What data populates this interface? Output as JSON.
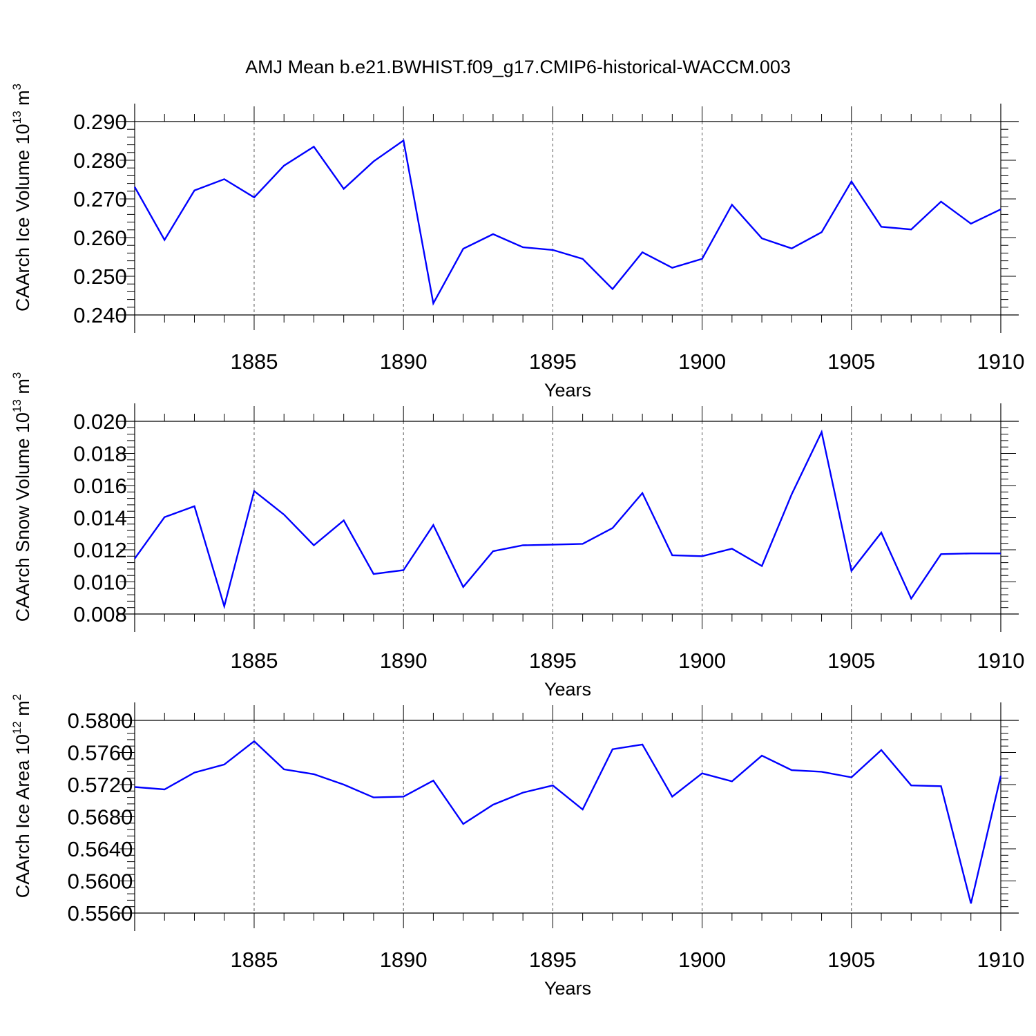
{
  "figure_title": "AMJ Mean b.e21.BWHIST.f09_g17.CMIP6-historical-WACCM.003",
  "colors": {
    "series": "#0000ff",
    "axes": "#000000",
    "grid": "#555555"
  },
  "chart_data": [
    {
      "type": "line",
      "ylabel": {
        "text": "CAArch Ice Volume 10",
        "sup1": "13",
        "mid": " m",
        "sup2": "3"
      },
      "xlabel": "Years",
      "xlim": [
        1881,
        1910
      ],
      "ylim": [
        0.24,
        0.29
      ],
      "xticks": [
        1885,
        1890,
        1895,
        1900,
        1905,
        1910
      ],
      "yticks": [
        "0.240",
        "0.250",
        "0.260",
        "0.270",
        "0.280",
        "0.290"
      ],
      "ytick_values": [
        0.24,
        0.25,
        0.26,
        0.27,
        0.28,
        0.29
      ],
      "grid": "x-major dashed",
      "x": [
        1881,
        1882,
        1883,
        1884,
        1885,
        1886,
        1887,
        1888,
        1889,
        1890,
        1891,
        1892,
        1893,
        1894,
        1895,
        1896,
        1897,
        1898,
        1899,
        1900,
        1901,
        1902,
        1903,
        1904,
        1905,
        1906,
        1907,
        1908,
        1909,
        1910
      ],
      "values": [
        0.2731,
        0.2594,
        0.2722,
        0.2751,
        0.2704,
        0.2786,
        0.2835,
        0.2726,
        0.2797,
        0.2851,
        0.243,
        0.2571,
        0.2609,
        0.2575,
        0.2568,
        0.2545,
        0.2467,
        0.2562,
        0.2522,
        0.2545,
        0.2685,
        0.2598,
        0.2572,
        0.2614,
        0.2745,
        0.2628,
        0.2621,
        0.2693,
        0.2636,
        0.2673
      ]
    },
    {
      "type": "line",
      "ylabel": {
        "text": "CAArch Snow Volume 10",
        "sup1": "13",
        "mid": " m",
        "sup2": "3"
      },
      "xlabel": "Years",
      "xlim": [
        1881,
        1910
      ],
      "ylim": [
        0.008,
        0.02
      ],
      "xticks": [
        1885,
        1890,
        1895,
        1900,
        1905,
        1910
      ],
      "yticks": [
        "0.008",
        "0.010",
        "0.012",
        "0.014",
        "0.016",
        "0.018",
        "0.020"
      ],
      "ytick_values": [
        0.008,
        0.01,
        0.012,
        0.014,
        0.016,
        0.018,
        0.02
      ],
      "grid": "x-major dashed",
      "x": [
        1881,
        1882,
        1883,
        1884,
        1885,
        1886,
        1887,
        1888,
        1889,
        1890,
        1891,
        1892,
        1893,
        1894,
        1895,
        1896,
        1897,
        1898,
        1899,
        1900,
        1901,
        1902,
        1903,
        1904,
        1905,
        1906,
        1907,
        1908,
        1909,
        1910
      ],
      "values": [
        0.01145,
        0.01403,
        0.01471,
        0.00848,
        0.01566,
        0.01419,
        0.01228,
        0.01383,
        0.01049,
        0.01073,
        0.01354,
        0.00968,
        0.01191,
        0.01228,
        0.01232,
        0.01237,
        0.01335,
        0.01553,
        0.01166,
        0.0116,
        0.01207,
        0.01099,
        0.01546,
        0.01933,
        0.01069,
        0.01307,
        0.00896,
        0.01173,
        0.01177,
        0.01177
      ]
    },
    {
      "type": "line",
      "ylabel": {
        "text": "CAArch Ice Area 10",
        "sup1": "12",
        "mid": " m",
        "sup2": "2"
      },
      "xlabel": "Years",
      "xlim": [
        1881,
        1910
      ],
      "ylim": [
        0.556,
        0.58
      ],
      "xticks": [
        1885,
        1890,
        1895,
        1900,
        1905,
        1910
      ],
      "yticks": [
        "0.5560",
        "0.5600",
        "0.5640",
        "0.5680",
        "0.5720",
        "0.5760",
        "0.5800"
      ],
      "ytick_values": [
        0.556,
        0.56,
        0.564,
        0.568,
        0.572,
        0.576,
        0.58
      ],
      "grid": "x-major dashed",
      "x": [
        1881,
        1882,
        1883,
        1884,
        1885,
        1886,
        1887,
        1888,
        1889,
        1890,
        1891,
        1892,
        1893,
        1894,
        1895,
        1896,
        1897,
        1898,
        1899,
        1900,
        1901,
        1902,
        1903,
        1904,
        1905,
        1906,
        1907,
        1908,
        1909,
        1910
      ],
      "values": [
        0.5717,
        0.5714,
        0.5735,
        0.5745,
        0.5774,
        0.5739,
        0.5733,
        0.572,
        0.5704,
        0.5705,
        0.5725,
        0.5671,
        0.5695,
        0.571,
        0.5719,
        0.5689,
        0.5764,
        0.577,
        0.5705,
        0.5734,
        0.5724,
        0.5756,
        0.5738,
        0.5736,
        0.5729,
        0.5763,
        0.5719,
        0.5718,
        0.5572,
        0.5731
      ]
    }
  ]
}
